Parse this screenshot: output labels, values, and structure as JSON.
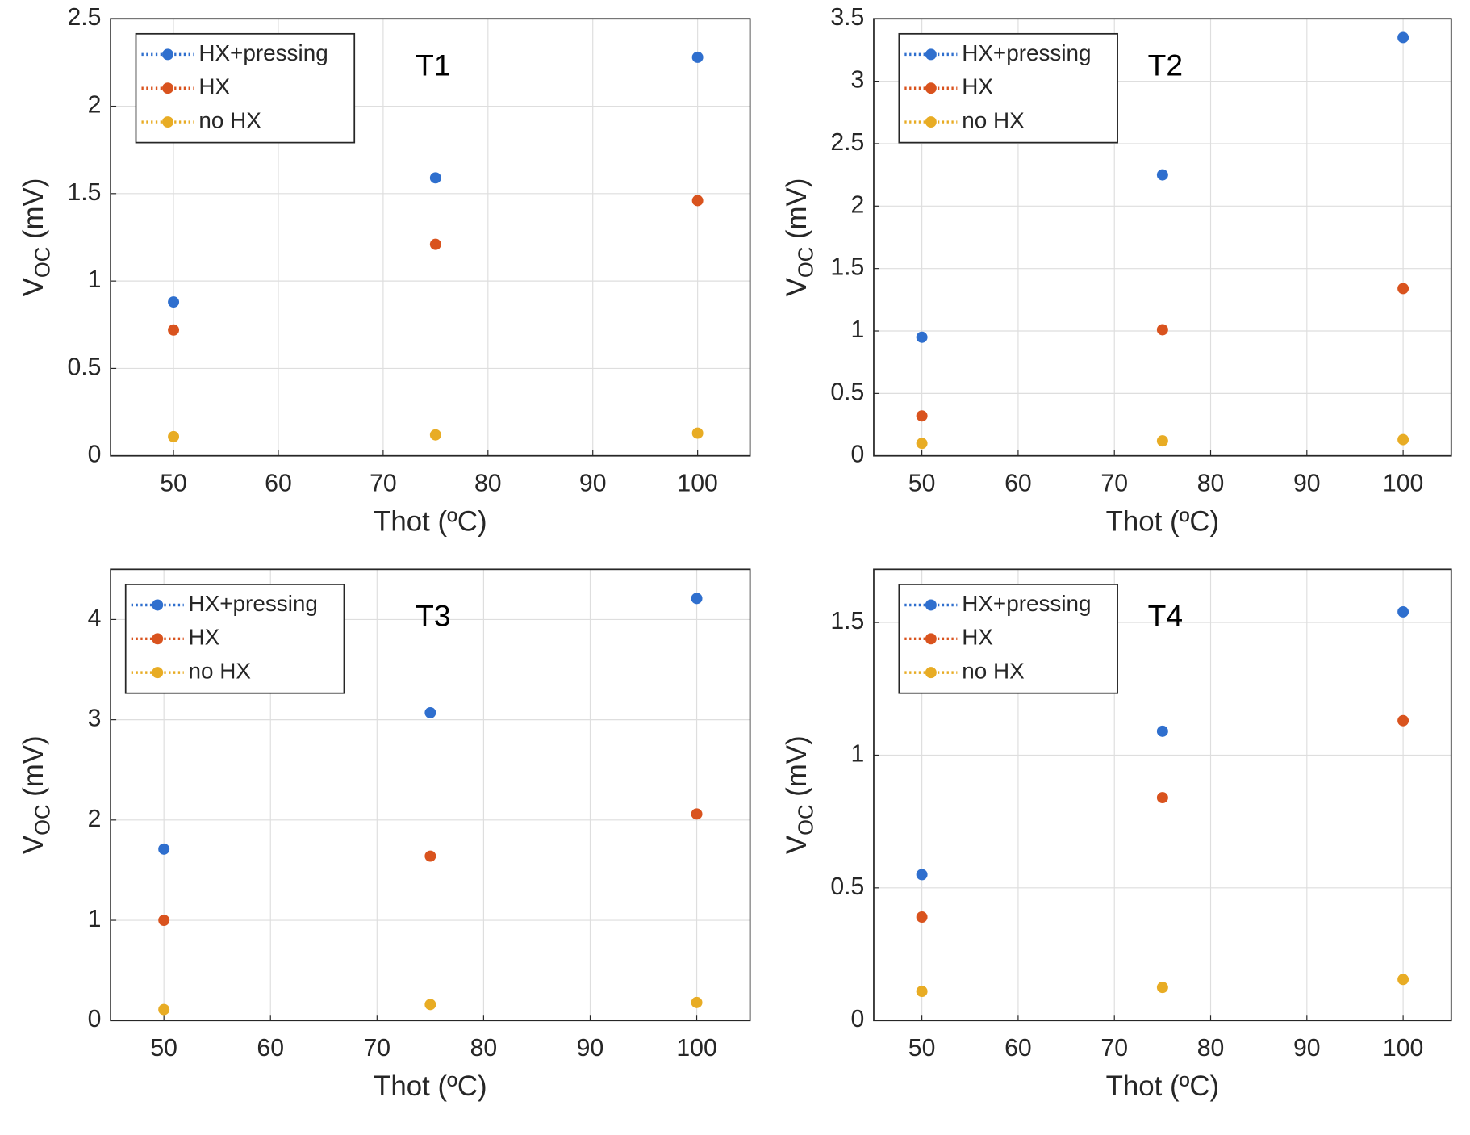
{
  "chart_data": [
    {
      "type": "line",
      "title": "T1",
      "xlabel": "Thot (ºC)",
      "ylabel": {
        "main": "V",
        "sub": "OC",
        "rest": " (mV)"
      },
      "x": [
        50,
        75,
        100
      ],
      "xlim": [
        44,
        105
      ],
      "xticks": [
        50,
        60,
        70,
        80,
        90,
        100
      ],
      "ylim": [
        0,
        2.5
      ],
      "yticks": [
        0,
        0.5,
        1,
        1.5,
        2,
        2.5
      ],
      "grid": true,
      "legend": "northwest",
      "series": [
        {
          "name": "HX+pressing",
          "color": "#2f6fce",
          "values": [
            0.88,
            1.59,
            2.28
          ]
        },
        {
          "name": "HX",
          "color": "#d9531e",
          "values": [
            0.72,
            1.21,
            1.46
          ]
        },
        {
          "name": "no HX",
          "color": "#e8ac24",
          "values": [
            0.11,
            0.12,
            0.13
          ]
        }
      ]
    },
    {
      "type": "line",
      "title": "T2",
      "xlabel": "Thot (ºC)",
      "ylabel": {
        "main": "V",
        "sub": "OC",
        "rest": " (mV)"
      },
      "x": [
        50,
        75,
        100
      ],
      "xlim": [
        45,
        105
      ],
      "xticks": [
        50,
        60,
        70,
        80,
        90,
        100
      ],
      "ylim": [
        0,
        3.5
      ],
      "yticks": [
        0,
        0.5,
        1,
        1.5,
        2,
        2.5,
        3,
        3.5
      ],
      "grid": true,
      "legend": "northwest",
      "series": [
        {
          "name": "HX+pressing",
          "color": "#2f6fce",
          "values": [
            0.95,
            2.25,
            3.35
          ]
        },
        {
          "name": "HX",
          "color": "#d9531e",
          "values": [
            0.32,
            1.01,
            1.34
          ]
        },
        {
          "name": "no HX",
          "color": "#e8ac24",
          "values": [
            0.1,
            0.12,
            0.13
          ]
        }
      ]
    },
    {
      "type": "line",
      "title": "T3",
      "xlabel": "Thot (ºC)",
      "ylabel": {
        "main": "V",
        "sub": "OC",
        "rest": " (mV)"
      },
      "x": [
        50,
        75,
        100
      ],
      "xlim": [
        45,
        105
      ],
      "xticks": [
        50,
        60,
        70,
        80,
        90,
        100
      ],
      "ylim": [
        0,
        4.5
      ],
      "yticks": [
        0,
        1,
        2,
        3,
        4
      ],
      "grid": true,
      "legend": "northwest",
      "series": [
        {
          "name": "HX+pressing",
          "color": "#2f6fce",
          "values": [
            1.71,
            3.07,
            4.21
          ]
        },
        {
          "name": "HX",
          "color": "#d9531e",
          "values": [
            1.0,
            1.64,
            2.06
          ]
        },
        {
          "name": "no HX",
          "color": "#e8ac24",
          "values": [
            0.11,
            0.16,
            0.18
          ]
        }
      ]
    },
    {
      "type": "line",
      "title": "T4",
      "xlabel": "Thot (ºC)",
      "ylabel": {
        "main": "V",
        "sub": "OC",
        "rest": " (mV)"
      },
      "x": [
        50,
        75,
        100
      ],
      "xlim": [
        45,
        105
      ],
      "xticks": [
        50,
        60,
        70,
        80,
        90,
        100
      ],
      "ylim": [
        0,
        1.7
      ],
      "yticks": [
        0,
        0.5,
        1,
        1.5
      ],
      "grid": true,
      "legend": "northwest",
      "series": [
        {
          "name": "HX+pressing",
          "color": "#2f6fce",
          "values": [
            0.55,
            1.09,
            1.54
          ]
        },
        {
          "name": "HX",
          "color": "#d9531e",
          "values": [
            0.39,
            0.84,
            1.13
          ]
        },
        {
          "name": "no HX",
          "color": "#e8ac24",
          "values": [
            0.11,
            0.125,
            0.155
          ]
        }
      ]
    }
  ]
}
